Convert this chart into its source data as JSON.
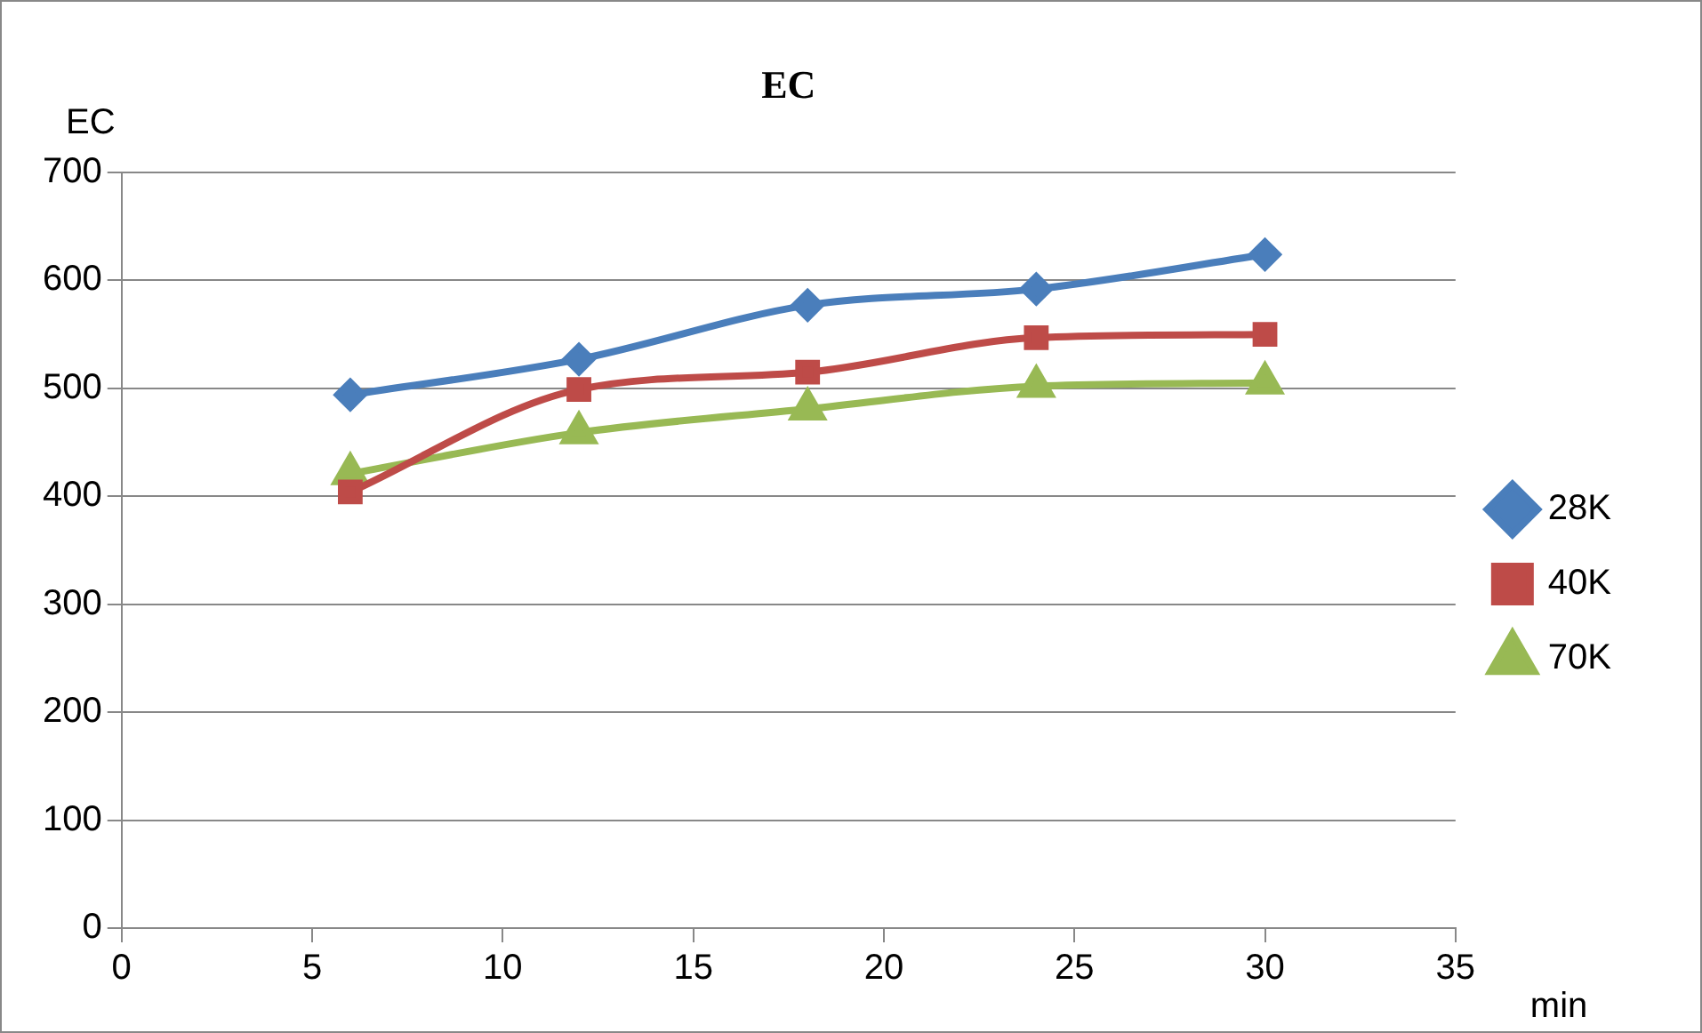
{
  "chart_data": {
    "type": "line",
    "title": "EC",
    "xlabel": "min",
    "ylabel": "EC",
    "x": [
      6,
      12,
      18,
      24,
      30
    ],
    "series": [
      {
        "name": "28K",
        "color": "#4a7ebb",
        "marker": "diamond",
        "values": [
          494,
          527,
          577,
          592,
          624
        ]
      },
      {
        "name": "40K",
        "color": "#be4b48",
        "marker": "square",
        "values": [
          404,
          499,
          515,
          547,
          550
        ]
      },
      {
        "name": "70K",
        "color": "#98b954",
        "marker": "triangle",
        "values": [
          421,
          459,
          481,
          502,
          505
        ]
      }
    ],
    "xlim": [
      0,
      35
    ],
    "xticks": [
      0,
      5,
      10,
      15,
      20,
      25,
      30,
      35
    ],
    "ylim": [
      0,
      700
    ],
    "yticks": [
      0,
      100,
      200,
      300,
      400,
      500,
      600,
      700
    ],
    "grid": "y",
    "legend": "right",
    "line_style": "solid"
  }
}
